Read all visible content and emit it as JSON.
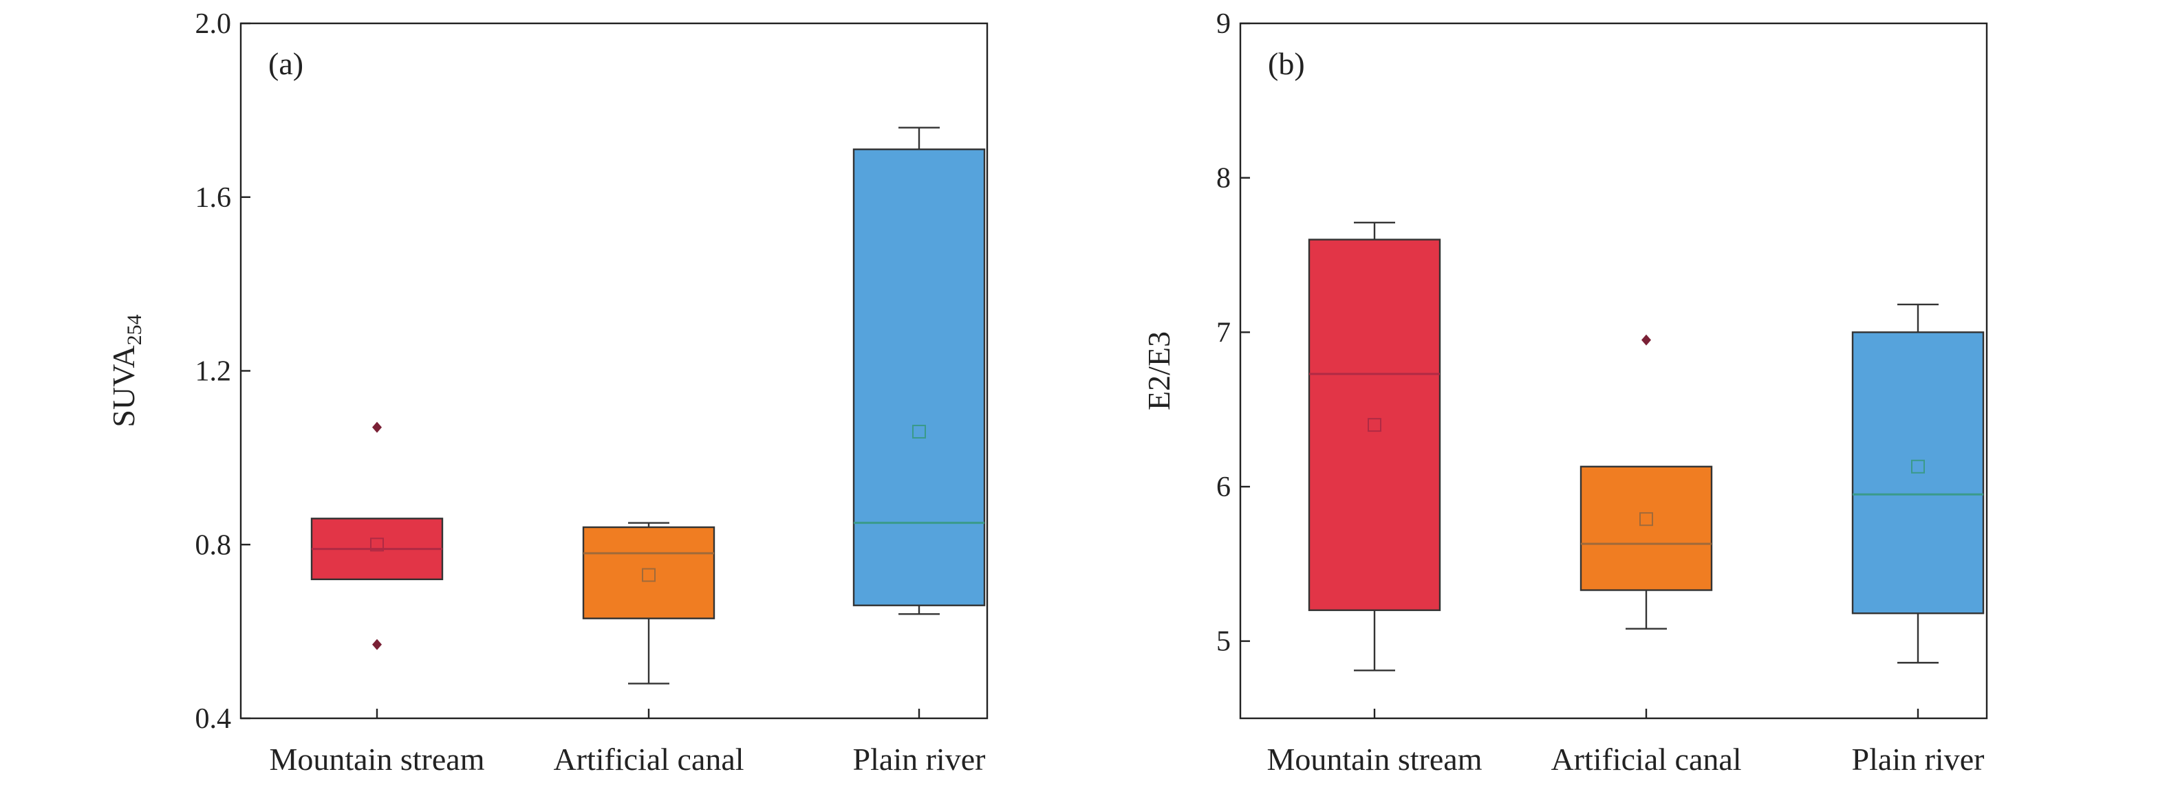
{
  "chart_data": [
    {
      "type": "box",
      "panel_label": "(a)",
      "ylabel_main": "SUVA",
      "ylabel_sub": "254",
      "ylim": [
        0.4,
        2.0
      ],
      "yticks": [
        0.4,
        0.8,
        1.2,
        1.6,
        2.0
      ],
      "ytick_labels": [
        "0.4",
        "0.8",
        "1.2",
        "1.6",
        "2.0"
      ],
      "categories": [
        "Mountain stream",
        "Artificial canal",
        "Plain river"
      ],
      "boxes": [
        {
          "name": "Mountain stream",
          "color": "#e23547",
          "median_color": "#b02a44",
          "min": 0.72,
          "q1": 0.72,
          "median": 0.79,
          "q3": 0.86,
          "max": 0.86,
          "mean": 0.8,
          "outliers": [
            1.07,
            0.57
          ]
        },
        {
          "name": "Artificial canal",
          "color": "#f07d22",
          "median_color": "#a06a3a",
          "min": 0.48,
          "q1": 0.63,
          "median": 0.78,
          "q3": 0.84,
          "max": 0.85,
          "mean": 0.73,
          "outliers": []
        },
        {
          "name": "Plain river",
          "color": "#56a3dc",
          "median_color": "#3a9a8a",
          "min": 0.64,
          "q1": 0.66,
          "median": 0.85,
          "q3": 1.71,
          "max": 1.76,
          "mean": 1.06,
          "outliers": []
        }
      ]
    },
    {
      "type": "box",
      "panel_label": "(b)",
      "ylabel_main": "E2/E3",
      "ylabel_sub": "",
      "ylim": [
        4.5,
        9
      ],
      "yticks": [
        5,
        6,
        7,
        8,
        9
      ],
      "ytick_labels": [
        "5",
        "6",
        "7",
        "8",
        "9"
      ],
      "categories": [
        "Mountain stream",
        "Artificial canal",
        "Plain river"
      ],
      "boxes": [
        {
          "name": "Mountain stream",
          "color": "#e23547",
          "median_color": "#b02a44",
          "min": 4.81,
          "q1": 5.2,
          "median": 6.73,
          "q3": 7.6,
          "max": 7.71,
          "mean": 6.4,
          "outliers": []
        },
        {
          "name": "Artificial canal",
          "color": "#f07d22",
          "median_color": "#a06a3a",
          "min": 5.08,
          "q1": 5.33,
          "median": 5.63,
          "q3": 6.13,
          "max": 6.13,
          "mean": 5.79,
          "outliers": [
            6.95
          ]
        },
        {
          "name": "Plain river",
          "color": "#56a3dc",
          "median_color": "#3a9a8a",
          "min": 4.86,
          "q1": 5.18,
          "median": 5.95,
          "q3": 7.0,
          "max": 7.18,
          "mean": 6.13,
          "outliers": []
        }
      ]
    }
  ],
  "outlier_color": "#7a2035"
}
